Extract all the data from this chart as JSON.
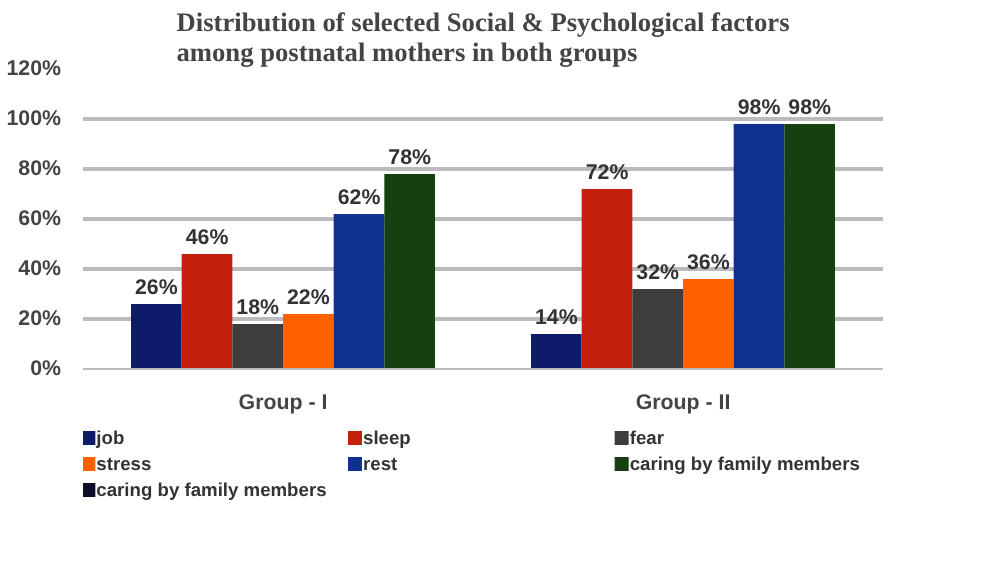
{
  "chart_data": {
    "type": "bar",
    "title": "Distribution of selected Social & Psychological factors\namong postnatal mothers in both groups",
    "categories": [
      "Group - I",
      "Group - II"
    ],
    "series": [
      {
        "name": "job",
        "color": "#0e1a6b",
        "values": [
          26,
          14
        ],
        "value_labels": [
          "26%",
          "14%"
        ]
      },
      {
        "name": "sleep",
        "color": "#c4200e",
        "values": [
          46,
          72
        ],
        "value_labels": [
          "46%",
          "72%"
        ]
      },
      {
        "name": "fear",
        "color": "#3d3d3d",
        "values": [
          18,
          32
        ],
        "value_labels": [
          "18%",
          "32%"
        ]
      },
      {
        "name": "stress",
        "color": "#ff6000",
        "values": [
          22,
          36
        ],
        "value_labels": [
          "22%",
          "36%"
        ]
      },
      {
        "name": "rest",
        "color": "#10308f",
        "values": [
          62,
          98
        ],
        "value_labels": [
          "62%",
          "98%"
        ]
      },
      {
        "name": "caring by family members",
        "color": "#174010",
        "values": [
          78,
          98
        ],
        "value_labels": [
          "78%",
          "98%"
        ]
      },
      {
        "name": "caring by family members",
        "color": "#0d0d2a",
        "values": [
          null,
          null
        ]
      }
    ],
    "ylim": [
      0,
      120
    ],
    "yticks": [
      {
        "value": 0,
        "label": "0%"
      },
      {
        "value": 20,
        "label": "20%"
      },
      {
        "value": 40,
        "label": "40%"
      },
      {
        "value": 60,
        "label": "60%"
      },
      {
        "value": 80,
        "label": "80%"
      },
      {
        "value": 100,
        "label": "100%"
      },
      {
        "value": 120,
        "label": "120%"
      }
    ],
    "grid": "y",
    "legend": "bottom"
  }
}
